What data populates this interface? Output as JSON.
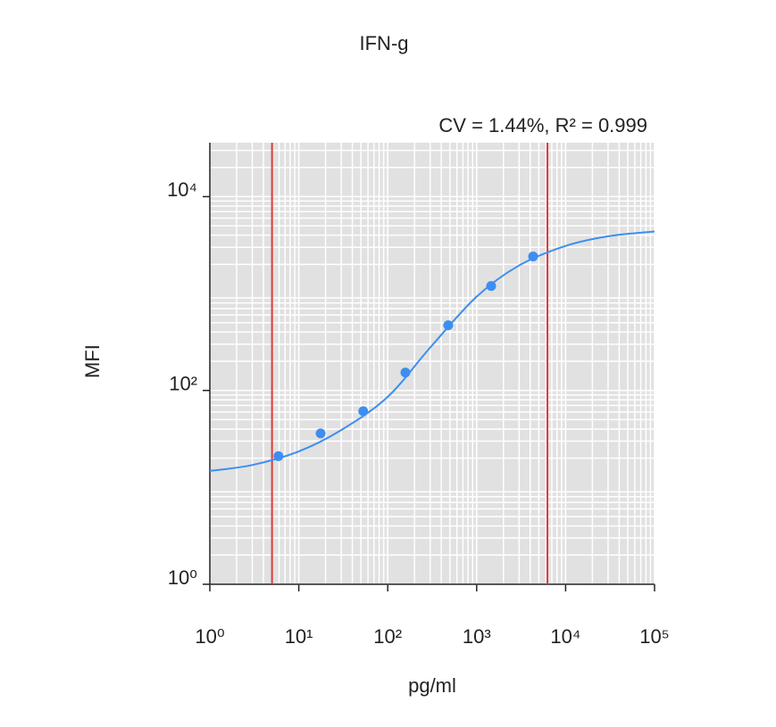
{
  "chart_data": {
    "type": "scatter",
    "title": "IFN-g",
    "annotation": "CV = 1.44%,  R² = 0.999",
    "x_label": "pg/ml",
    "y_label": "MFI",
    "x": [
      5.9,
      17.6,
      53,
      158,
      479,
      1455,
      4312
    ],
    "values": [
      21,
      36,
      61,
      153,
      471,
      1197,
      2412
    ],
    "color": "#3d8ef0",
    "fit": {
      "x": [
        1,
        3,
        10,
        30,
        100,
        300,
        1000,
        3000,
        10000,
        30000,
        100000
      ],
      "values": [
        14.8,
        17,
        23.5,
        39,
        86,
        277,
        930,
        1950,
        3100,
        3900,
        4370
      ]
    },
    "limits": [
      5,
      6240
    ],
    "limit_color": "#e03a3a",
    "log_x": true,
    "log_y": true,
    "grid": true,
    "xlim": [
      1,
      100000
    ],
    "ylim": [
      1,
      36000
    ],
    "xticks": [
      {
        "value": 1,
        "label": "10⁰"
      },
      {
        "value": 10,
        "label": "10¹"
      },
      {
        "value": 100,
        "label": "10²"
      },
      {
        "value": 1000,
        "label": "10³"
      },
      {
        "value": 10000,
        "label": "10⁴"
      },
      {
        "value": 100000,
        "label": "10⁵"
      }
    ],
    "yticks": [
      {
        "value": 1,
        "label": "10⁰"
      },
      {
        "value": 100,
        "label": "10²"
      },
      {
        "value": 10000,
        "label": "10⁴"
      }
    ]
  }
}
